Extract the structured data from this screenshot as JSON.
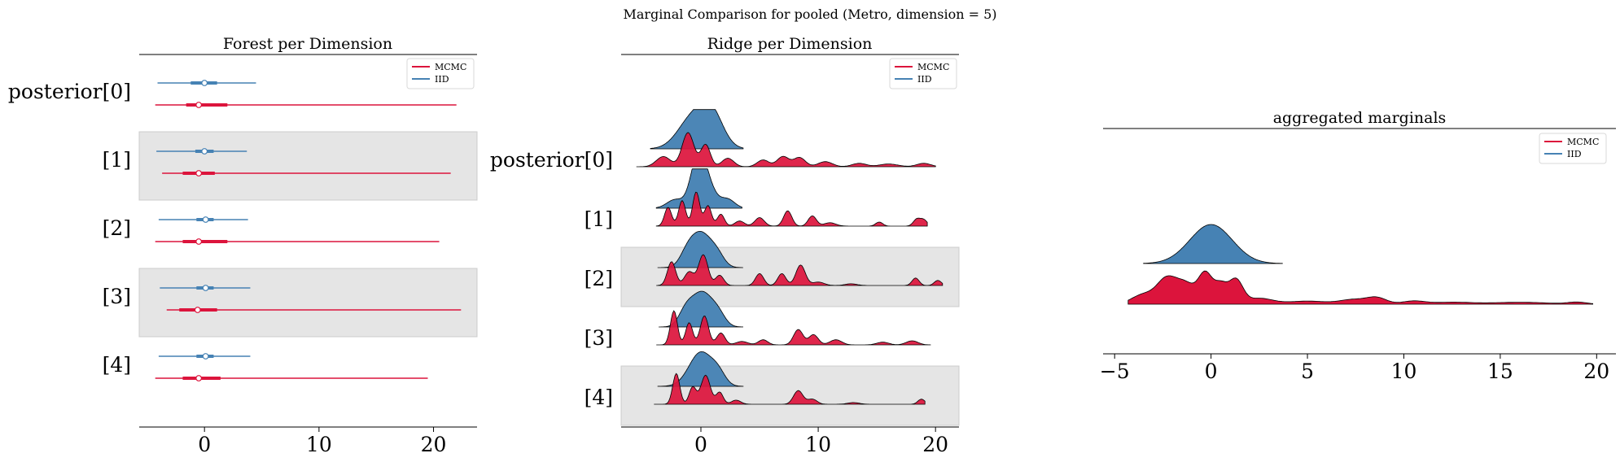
{
  "figure": {
    "suptitle": "Marginal Comparison for pooled (Metro, dimension = 5)"
  },
  "colors": {
    "mcmc": "#dc143c",
    "iid": "#4682b4",
    "band": "#e5e5e5"
  },
  "legend": {
    "mcmc_label": "MCMC",
    "iid_label": "IID",
    "location": "top-right"
  },
  "chart_data": [
    {
      "type": "forest",
      "title": "Forest per Dimension",
      "row_labels": [
        "posterior[0]",
        "[1]",
        "[2]",
        "[3]",
        "[4]"
      ],
      "xticks": [
        0,
        10,
        20
      ],
      "xlim": [
        -5.7,
        23.8
      ],
      "series": [
        {
          "name": "MCMC",
          "rows": [
            {
              "low": -4.3,
              "q1": -1.6,
              "median": -0.5,
              "q3": 2.0,
              "high": 22.0
            },
            {
              "low": -3.7,
              "q1": -1.9,
              "median": -0.5,
              "q3": 0.9,
              "high": 21.5
            },
            {
              "low": -4.3,
              "q1": -1.9,
              "median": -0.5,
              "q3": 2.0,
              "high": 20.5
            },
            {
              "low": -3.3,
              "q1": -2.2,
              "median": -0.6,
              "q3": 1.1,
              "high": 22.4
            },
            {
              "low": -4.3,
              "q1": -1.9,
              "median": -0.5,
              "q3": 1.4,
              "high": 19.5
            }
          ]
        },
        {
          "name": "IID",
          "rows": [
            {
              "low": -4.1,
              "q1": -1.2,
              "median": 0.0,
              "q3": 1.1,
              "high": 4.5
            },
            {
              "low": -4.2,
              "q1": -0.8,
              "median": 0.0,
              "q3": 0.8,
              "high": 3.7
            },
            {
              "low": -4.0,
              "q1": -0.7,
              "median": 0.1,
              "q3": 0.8,
              "high": 3.8
            },
            {
              "low": -3.9,
              "q1": -0.7,
              "median": 0.1,
              "q3": 0.8,
              "high": 4.0
            },
            {
              "low": -4.0,
              "q1": -0.7,
              "median": 0.1,
              "q3": 0.8,
              "high": 4.0
            }
          ]
        }
      ]
    },
    {
      "type": "ridge",
      "title": "Ridge per Dimension",
      "row_labels": [
        "posterior[0]",
        "[1]",
        "[2]",
        "[3]",
        "[4]"
      ],
      "xticks": [
        0,
        10,
        20
      ],
      "xlim": [
        -6.8,
        22.0
      ],
      "series": [
        {
          "name": "IID",
          "rows": [
            {
              "range": [
                -4.3,
                3.6
              ],
              "peaks": [
                [
                  -0.8,
                  0.85,
                  1.2
                ],
                [
                  0.9,
                  1.0,
                  1.0
                ]
              ]
            },
            {
              "range": [
                -3.8,
                3.5
              ],
              "peaks": [
                [
                  -0.3,
                  1.0,
                  0.6
                ],
                [
                  0.3,
                  0.85,
                  0.8
                ],
                [
                  -2.2,
                  0.25,
                  0.7
                ],
                [
                  2.3,
                  0.25,
                  0.6
                ]
              ]
            },
            {
              "range": [
                -3.7,
                3.6
              ],
              "peaks": [
                [
                  0.0,
                  1.0,
                  0.9
                ],
                [
                  -1.2,
                  0.3,
                  0.6
                ],
                [
                  1.4,
                  0.3,
                  0.6
                ]
              ]
            },
            {
              "range": [
                -3.6,
                3.6
              ],
              "peaks": [
                [
                  0.1,
                  1.0,
                  0.9
                ],
                [
                  -1.3,
                  0.4,
                  0.6
                ],
                [
                  1.5,
                  0.3,
                  0.6
                ]
              ]
            },
            {
              "range": [
                -3.7,
                3.6
              ],
              "peaks": [
                [
                  0.0,
                  1.0,
                  1.0
                ],
                [
                  1.5,
                  0.3,
                  0.6
                ]
              ]
            }
          ]
        },
        {
          "name": "MCMC",
          "rows": [
            {
              "range": [
                -5.5,
                20.0
              ],
              "peaks": [
                [
                  -1.1,
                  1.0,
                  0.5
                ],
                [
                  0.4,
                  0.65,
                  0.4
                ],
                [
                  -3.2,
                  0.3,
                  0.6
                ],
                [
                  2.3,
                  0.25,
                  0.5
                ],
                [
                  5.3,
                  0.2,
                  0.5
                ],
                [
                  7.0,
                  0.3,
                  0.5
                ],
                [
                  8.4,
                  0.27,
                  0.5
                ],
                [
                  10.6,
                  0.15,
                  0.6
                ],
                [
                  13.5,
                  0.1,
                  0.6
                ],
                [
                  16.0,
                  0.08,
                  0.8
                ],
                [
                  19.0,
                  0.1,
                  0.6
                ]
              ]
            },
            {
              "range": [
                -3.8,
                19.3
              ],
              "peaks": [
                [
                  -0.4,
                  1.0,
                  0.3
                ],
                [
                  -2.8,
                  0.55,
                  0.3
                ],
                [
                  -1.6,
                  0.75,
                  0.3
                ],
                [
                  0.6,
                  0.6,
                  0.3
                ],
                [
                  1.7,
                  0.35,
                  0.3
                ],
                [
                  3.3,
                  0.15,
                  0.4
                ],
                [
                  5.0,
                  0.25,
                  0.4
                ],
                [
                  7.4,
                  0.45,
                  0.35
                ],
                [
                  9.5,
                  0.3,
                  0.35
                ],
                [
                  11.0,
                  0.1,
                  0.5
                ],
                [
                  15.2,
                  0.12,
                  0.3
                ],
                [
                  18.4,
                  0.2,
                  0.3
                ],
                [
                  19.0,
                  0.18,
                  0.3
                ]
              ]
            },
            {
              "range": [
                -3.8,
                20.6
              ],
              "peaks": [
                [
                  -2.5,
                  0.7,
                  0.35
                ],
                [
                  -1.0,
                  0.4,
                  0.4
                ],
                [
                  0.2,
                  0.9,
                  0.4
                ],
                [
                  1.6,
                  0.3,
                  0.35
                ],
                [
                  5.0,
                  0.35,
                  0.35
                ],
                [
                  6.9,
                  0.35,
                  0.35
                ],
                [
                  8.5,
                  0.6,
                  0.4
                ],
                [
                  10.0,
                  0.1,
                  0.5
                ],
                [
                  12.8,
                  0.05,
                  0.5
                ],
                [
                  18.3,
                  0.22,
                  0.3
                ],
                [
                  20.2,
                  0.15,
                  0.3
                ]
              ]
            },
            {
              "range": [
                -3.8,
                19.6
              ],
              "peaks": [
                [
                  -2.3,
                  1.0,
                  0.3
                ],
                [
                  -1.0,
                  0.65,
                  0.3
                ],
                [
                  0.3,
                  0.85,
                  0.35
                ],
                [
                  1.7,
                  0.35,
                  0.35
                ],
                [
                  3.5,
                  0.1,
                  0.5
                ],
                [
                  5.3,
                  0.15,
                  0.4
                ],
                [
                  8.3,
                  0.45,
                  0.4
                ],
                [
                  9.6,
                  0.3,
                  0.4
                ],
                [
                  11.5,
                  0.15,
                  0.5
                ],
                [
                  15.5,
                  0.08,
                  0.5
                ],
                [
                  18.0,
                  0.12,
                  0.5
                ]
              ]
            },
            {
              "range": [
                -4.0,
                19.1
              ],
              "peaks": [
                [
                  -2.1,
                  0.9,
                  0.3
                ],
                [
                  -0.7,
                  0.5,
                  0.3
                ],
                [
                  0.4,
                  0.85,
                  0.4
                ],
                [
                  1.6,
                  0.35,
                  0.3
                ],
                [
                  3.0,
                  0.12,
                  0.4
                ],
                [
                  8.3,
                  0.4,
                  0.4
                ],
                [
                  9.5,
                  0.15,
                  0.4
                ],
                [
                  13.0,
                  0.05,
                  0.5
                ],
                [
                  18.8,
                  0.15,
                  0.3
                ]
              ]
            }
          ]
        }
      ]
    },
    {
      "type": "ridge",
      "title": "aggregated marginals",
      "xticks": [
        -5,
        0,
        5,
        10,
        15,
        20
      ],
      "xlim": [
        -5.6,
        21.0
      ],
      "series": [
        {
          "name": "IID",
          "range": [
            -3.5,
            3.7
          ],
          "peaks": [
            [
              0.0,
              1.0,
              1.1
            ]
          ]
        },
        {
          "name": "MCMC",
          "range": [
            -4.3,
            19.8
          ],
          "peaks": [
            [
              -2.3,
              0.62,
              0.5
            ],
            [
              -3.5,
              0.25,
              0.6
            ],
            [
              -1.3,
              0.5,
              0.5
            ],
            [
              -0.3,
              0.75,
              0.35
            ],
            [
              0.5,
              0.5,
              0.35
            ],
            [
              1.3,
              0.6,
              0.35
            ],
            [
              2.5,
              0.15,
              0.7
            ],
            [
              5.0,
              0.08,
              1.0
            ],
            [
              7.4,
              0.12,
              0.7
            ],
            [
              8.6,
              0.16,
              0.5
            ],
            [
              10.5,
              0.08,
              0.6
            ],
            [
              12.5,
              0.05,
              1.0
            ],
            [
              16.0,
              0.05,
              1.5
            ],
            [
              19.0,
              0.05,
              0.5
            ]
          ]
        }
      ]
    }
  ]
}
